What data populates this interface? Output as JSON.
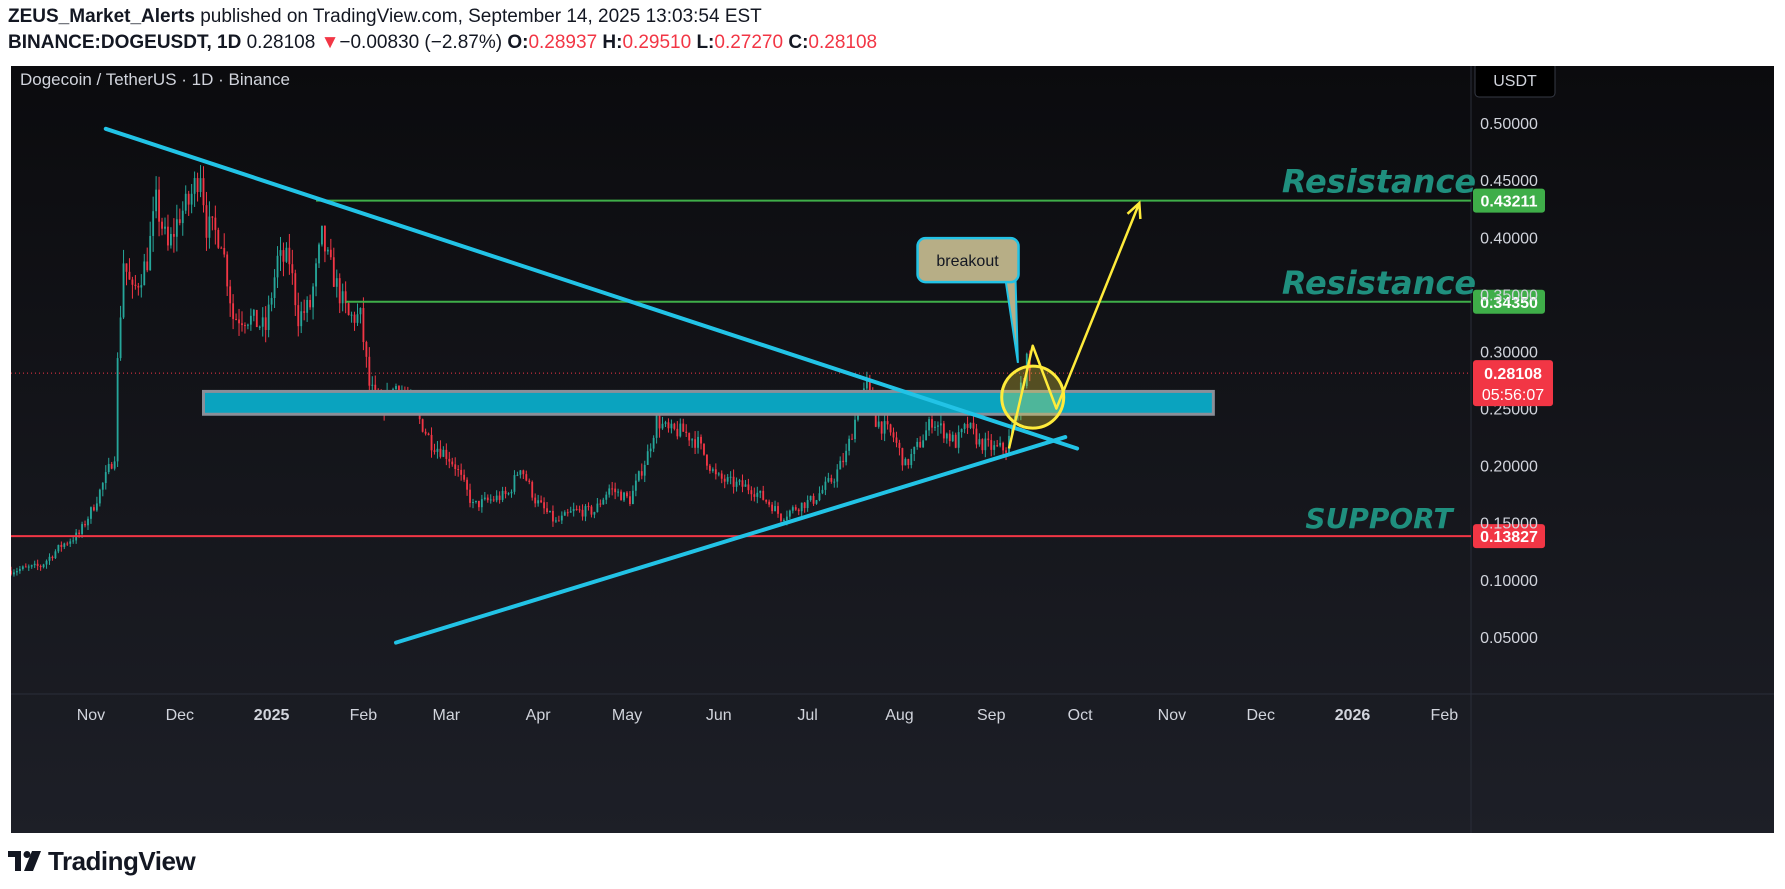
{
  "header": {
    "author": "ZEUS_Market_Alerts",
    "published": "published on TradingView.com, September 14, 2025 13:03:54 EST",
    "symbol": "BINANCE:DOGEUSDT, 1D",
    "last": "0.28108",
    "change_arrow": "▼",
    "change": "−0.00830 (−2.87%)",
    "o_label": "O:",
    "o": "0.28937",
    "h_label": "H:",
    "h": "0.29510",
    "l_label": "L:",
    "l": "0.27270",
    "c_label": "C:",
    "c": "0.28108"
  },
  "legend": "Dogecoin / TetherUS · 1D · Binance",
  "currency_button": "USDT",
  "footer": {
    "brand": "TradingView"
  },
  "colors": {
    "bg_top": "#0b0b0e",
    "bg_bottom": "#1d1f27",
    "up": "#26a69a",
    "down": "#f23645",
    "trendline": "#22c3e6",
    "level": "#3fae49",
    "support": "#f23645",
    "zone": "#0aa3bf",
    "label_text": "#1f8f7e",
    "path": "#ffeb3b",
    "axis_text": "#d1d4dc"
  },
  "chart_data": {
    "type": "candlestick",
    "symbol": "DOGEUSDT",
    "interval": "1D",
    "ylim": [
      0.0,
      0.55
    ],
    "yticks": [
      0.05,
      0.1,
      0.15,
      0.2,
      0.25,
      0.3,
      0.35,
      0.4,
      0.45,
      0.5
    ],
    "ytick_labels": [
      "0.05000",
      "0.10000",
      "0.15000",
      "0.20000",
      "0.25000",
      "0.30000",
      "0.35000",
      "0.40000",
      "0.45000",
      "0.50000"
    ],
    "x_range": [
      "2024-10-05",
      "2026-02-10"
    ],
    "xticks": [
      {
        "date": "2024-11-01",
        "label": "Nov"
      },
      {
        "date": "2024-12-01",
        "label": "Dec"
      },
      {
        "date": "2025-01-01",
        "label": "2025"
      },
      {
        "date": "2025-02-01",
        "label": "Feb"
      },
      {
        "date": "2025-03-01",
        "label": "Mar"
      },
      {
        "date": "2025-04-01",
        "label": "Apr"
      },
      {
        "date": "2025-05-01",
        "label": "May"
      },
      {
        "date": "2025-06-01",
        "label": "Jun"
      },
      {
        "date": "2025-07-01",
        "label": "Jul"
      },
      {
        "date": "2025-08-01",
        "label": "Aug"
      },
      {
        "date": "2025-09-01",
        "label": "Sep"
      },
      {
        "date": "2025-10-01",
        "label": "Oct"
      },
      {
        "date": "2025-11-01",
        "label": "Nov"
      },
      {
        "date": "2025-12-01",
        "label": "Dec"
      },
      {
        "date": "2026-01-01",
        "label": "2026"
      },
      {
        "date": "2026-02-01",
        "label": "Feb"
      }
    ],
    "close_path": [
      [
        "2024-10-05",
        0.108
      ],
      [
        "2024-10-15",
        0.112
      ],
      [
        "2024-10-22",
        0.13
      ],
      [
        "2024-10-28",
        0.14
      ],
      [
        "2024-11-02",
        0.165
      ],
      [
        "2024-11-06",
        0.19
      ],
      [
        "2024-11-09",
        0.21
      ],
      [
        "2024-11-10",
        0.29
      ],
      [
        "2024-11-12",
        0.38
      ],
      [
        "2024-11-15",
        0.35
      ],
      [
        "2024-11-20",
        0.38
      ],
      [
        "2024-11-23",
        0.43
      ],
      [
        "2024-11-27",
        0.39
      ],
      [
        "2024-12-01",
        0.42
      ],
      [
        "2024-12-04",
        0.43
      ],
      [
        "2024-12-08",
        0.46
      ],
      [
        "2024-12-10",
        0.41
      ],
      [
        "2024-12-15",
        0.4
      ],
      [
        "2024-12-19",
        0.33
      ],
      [
        "2024-12-24",
        0.33
      ],
      [
        "2024-12-30",
        0.32
      ],
      [
        "2025-01-03",
        0.38
      ],
      [
        "2025-01-07",
        0.38
      ],
      [
        "2025-01-10",
        0.33
      ],
      [
        "2025-01-14",
        0.34
      ],
      [
        "2025-01-18",
        0.4
      ],
      [
        "2025-01-20",
        0.38
      ],
      [
        "2025-01-24",
        0.35
      ],
      [
        "2025-01-27",
        0.33
      ],
      [
        "2025-01-31",
        0.33
      ],
      [
        "2025-02-03",
        0.27
      ],
      [
        "2025-02-07",
        0.25
      ],
      [
        "2025-02-12",
        0.27
      ],
      [
        "2025-02-18",
        0.25
      ],
      [
        "2025-02-24",
        0.22
      ],
      [
        "2025-03-01",
        0.21
      ],
      [
        "2025-03-04",
        0.2
      ],
      [
        "2025-03-10",
        0.165
      ],
      [
        "2025-03-16",
        0.17
      ],
      [
        "2025-03-22",
        0.175
      ],
      [
        "2025-03-26",
        0.2
      ],
      [
        "2025-03-31",
        0.17
      ],
      [
        "2025-04-07",
        0.15
      ],
      [
        "2025-04-13",
        0.16
      ],
      [
        "2025-04-20",
        0.16
      ],
      [
        "2025-04-25",
        0.18
      ],
      [
        "2025-05-02",
        0.17
      ],
      [
        "2025-05-08",
        0.21
      ],
      [
        "2025-05-11",
        0.24
      ],
      [
        "2025-05-15",
        0.23
      ],
      [
        "2025-05-20",
        0.23
      ],
      [
        "2025-05-25",
        0.22
      ],
      [
        "2025-05-31",
        0.19
      ],
      [
        "2025-06-05",
        0.185
      ],
      [
        "2025-06-12",
        0.18
      ],
      [
        "2025-06-19",
        0.165
      ],
      [
        "2025-06-22",
        0.155
      ],
      [
        "2025-06-28",
        0.165
      ],
      [
        "2025-07-03",
        0.17
      ],
      [
        "2025-07-10",
        0.19
      ],
      [
        "2025-07-14",
        0.21
      ],
      [
        "2025-07-18",
        0.25
      ],
      [
        "2025-07-21",
        0.27
      ],
      [
        "2025-07-24",
        0.24
      ],
      [
        "2025-07-30",
        0.225
      ],
      [
        "2025-08-03",
        0.2
      ],
      [
        "2025-08-08",
        0.22
      ],
      [
        "2025-08-12",
        0.24
      ],
      [
        "2025-08-16",
        0.23
      ],
      [
        "2025-08-20",
        0.22
      ],
      [
        "2025-08-24",
        0.235
      ],
      [
        "2025-08-28",
        0.22
      ],
      [
        "2025-09-02",
        0.215
      ],
      [
        "2025-09-06",
        0.215
      ],
      [
        "2025-09-09",
        0.24
      ],
      [
        "2025-09-11",
        0.265
      ],
      [
        "2025-09-13",
        0.29
      ],
      [
        "2025-09-14",
        0.281
      ]
    ],
    "levels": [
      {
        "name": "resistance-2",
        "label": "Resistance",
        "price": 0.43211,
        "start": "2025-01-16",
        "end": "2026-02-10",
        "price_label": "0.43211"
      },
      {
        "name": "resistance-1",
        "label": "Resistance",
        "price": 0.3435,
        "start": "2025-01-26",
        "end": "2026-02-10",
        "price_label": "0.34350"
      },
      {
        "name": "support",
        "label": "SUPPORT",
        "price": 0.13827,
        "start": "2024-10-05",
        "end": "2026-02-10",
        "price_label": "0.13827"
      }
    ],
    "current_price_label": "0.28108",
    "countdown_label": "05:56:07",
    "zone": {
      "from_date": "2024-12-09",
      "to_date": "2025-11-15",
      "low": 0.245,
      "high": 0.265
    },
    "trendlines": [
      {
        "name": "descending-trendline",
        "from": [
          "2024-11-06",
          0.495
        ],
        "to": [
          "2025-09-30",
          0.215
        ]
      },
      {
        "name": "ascending-trendline",
        "from": [
          "2025-02-12",
          0.045
        ],
        "to": [
          "2025-09-26",
          0.225
        ]
      }
    ],
    "projection": [
      [
        "2025-09-07",
        0.215
      ],
      [
        "2025-09-15",
        0.305
      ],
      [
        "2025-09-23",
        0.25
      ],
      [
        "2025-10-21",
        0.43
      ]
    ],
    "breakout_circle": {
      "date": "2025-09-15",
      "price": 0.26
    },
    "callout": {
      "text": "breakout",
      "box_date": "2025-08-24",
      "box_price": 0.38,
      "pointer": [
        "2025-09-10",
        0.29
      ]
    }
  }
}
